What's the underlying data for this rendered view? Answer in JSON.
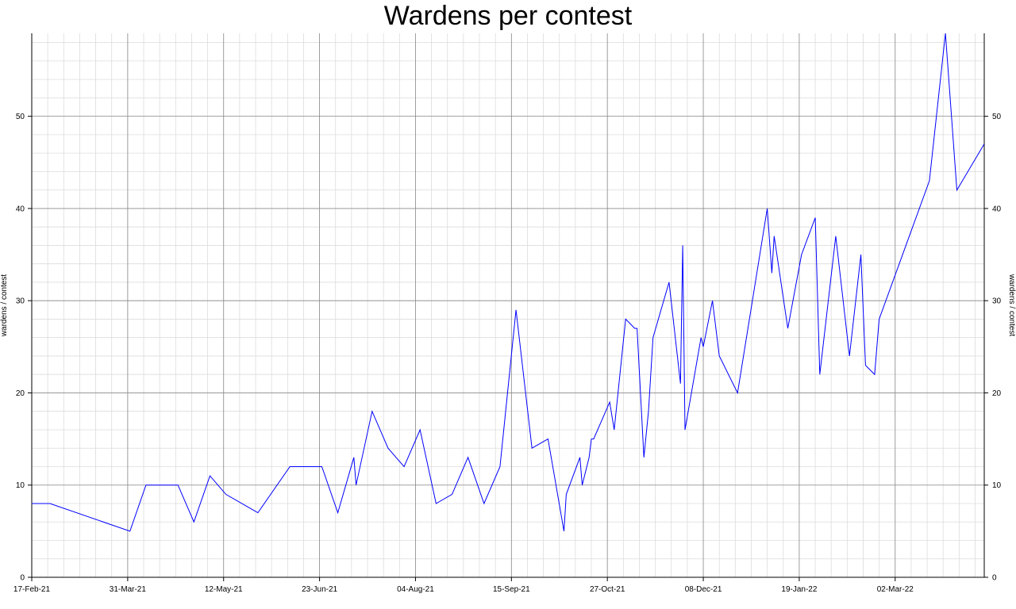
{
  "chart_data": {
    "type": "line",
    "title": "Wardens per contest",
    "ylabel": "wardens / contest",
    "ylabel_right": "wardens / contest",
    "xlabel": "",
    "ylim": [
      0,
      59
    ],
    "xlim": [
      "2021-02-17",
      "2022-04-10"
    ],
    "grid": true,
    "line_color": "#0000ff",
    "x_ticks": [
      "17-Feb-21",
      "31-Mar-21",
      "12-May-21",
      "23-Jun-21",
      "04-Aug-21",
      "15-Sep-21",
      "27-Oct-21",
      "08-Dec-21",
      "19-Jan-22",
      "02-Mar-22"
    ],
    "x_tick_dates": [
      "2021-02-17",
      "2021-03-31",
      "2021-05-12",
      "2021-06-23",
      "2021-08-04",
      "2021-09-15",
      "2021-10-27",
      "2021-12-08",
      "2022-01-19",
      "2022-03-02"
    ],
    "y_ticks": [
      0,
      10,
      20,
      30,
      40,
      50
    ],
    "series": [
      {
        "x": [
          "2021-02-17",
          "2021-02-25",
          "2021-04-01",
          "2021-04-08",
          "2021-04-22",
          "2021-04-29",
          "2021-05-06",
          "2021-05-13",
          "2021-05-27",
          "2021-06-10",
          "2021-06-24",
          "2021-07-01",
          "2021-07-08",
          "2021-07-09",
          "2021-07-16",
          "2021-07-23",
          "2021-07-30",
          "2021-08-06",
          "2021-08-13",
          "2021-08-20",
          "2021-08-27",
          "2021-09-03",
          "2021-09-10",
          "2021-09-17",
          "2021-09-24",
          "2021-10-01",
          "2021-10-08",
          "2021-10-09",
          "2021-10-15",
          "2021-10-16",
          "2021-10-19",
          "2021-10-20",
          "2021-10-21",
          "2021-10-28",
          "2021-10-30",
          "2021-11-04",
          "2021-11-08",
          "2021-11-09",
          "2021-11-12",
          "2021-11-14",
          "2021-11-16",
          "2021-11-23",
          "2021-11-28",
          "2021-11-29",
          "2021-11-30",
          "2021-12-07",
          "2021-12-08",
          "2021-12-12",
          "2021-12-15",
          "2021-12-23",
          "2022-01-05",
          "2022-01-07",
          "2022-01-08",
          "2022-01-14",
          "2022-01-20",
          "2022-01-26",
          "2022-01-28",
          "2022-02-04",
          "2022-02-10",
          "2022-02-15",
          "2022-02-17",
          "2022-02-21",
          "2022-02-23",
          "2022-03-17",
          "2022-03-24",
          "2022-03-29",
          "2022-04-10"
        ],
        "values": [
          8,
          8,
          5,
          10,
          10,
          6,
          11,
          9,
          7,
          12,
          12,
          7,
          13,
          10,
          18,
          14,
          12,
          16,
          8,
          9,
          13,
          8,
          12,
          29,
          14,
          15,
          5,
          9,
          13,
          10,
          13,
          15,
          15,
          19,
          16,
          28,
          27,
          27,
          13,
          18,
          26,
          32,
          21,
          36,
          16,
          26,
          25,
          30,
          24,
          20,
          40,
          33,
          37,
          27,
          35,
          39,
          22,
          37,
          24,
          35,
          23,
          22,
          28,
          43,
          59,
          42,
          47
        ]
      }
    ]
  }
}
